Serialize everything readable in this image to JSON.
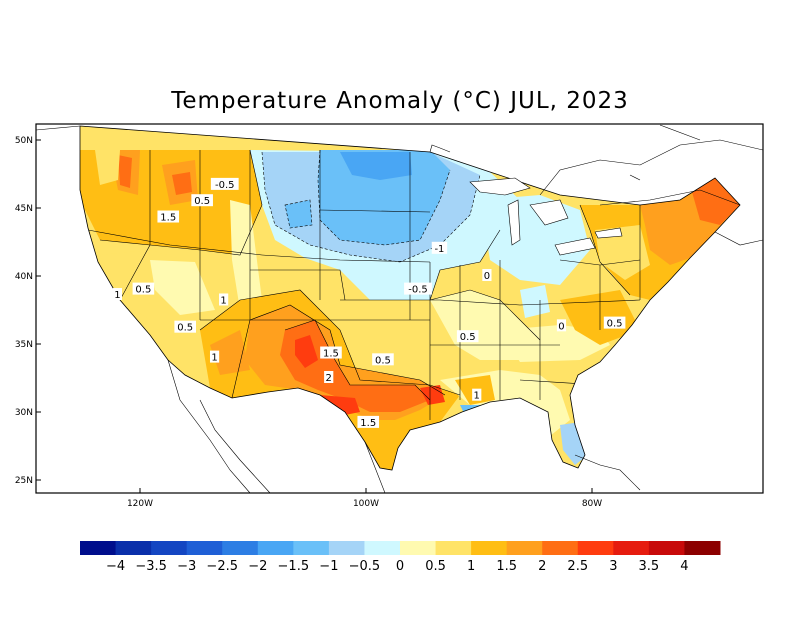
{
  "title": "Temperature Anomaly (°C) JUL, 2023",
  "axes": {
    "lat_ticks": [
      {
        "label": "50N",
        "lat": 50
      },
      {
        "label": "45N",
        "lat": 45
      },
      {
        "label": "40N",
        "lat": 40
      },
      {
        "label": "35N",
        "lat": 35
      },
      {
        "label": "30N",
        "lat": 30
      },
      {
        "label": "25N",
        "lat": 25
      }
    ],
    "lon_ticks": [
      {
        "label": "120W",
        "lon": -120
      },
      {
        "label": "100W",
        "lon": -100
      },
      {
        "label": "80W",
        "lon": -80
      }
    ]
  },
  "colorbar": {
    "colors": [
      "#000e8c",
      "#0a2faa",
      "#1446c2",
      "#1f5fd6",
      "#2d7ee4",
      "#49a6f4",
      "#6ac0f8",
      "#a5d4f7",
      "#cff8ff",
      "#fffab0",
      "#ffe367",
      "#ffbe14",
      "#ffa01e",
      "#ff6e14",
      "#ff3c0f",
      "#e61c0f",
      "#c80a0a",
      "#8c0000"
    ],
    "labels": [
      "−4",
      "−3.5",
      "−3",
      "−2.5",
      "−2",
      "−1.5",
      "−1",
      "−0.5",
      "0",
      "0.5",
      "1",
      "1.5",
      "2",
      "2.5",
      "3",
      "3.5",
      "4"
    ]
  },
  "contour_labels": [
    {
      "text": "-0.5",
      "lon": -112.5,
      "lat": 46.7
    },
    {
      "text": "0.5",
      "lon": -114.5,
      "lat": 45.5
    },
    {
      "text": "1.5",
      "lon": -117.5,
      "lat": 44.3
    },
    {
      "text": "-1",
      "lon": -93.5,
      "lat": 42.0
    },
    {
      "text": "-0.5",
      "lon": -95.4,
      "lat": 39.0
    },
    {
      "text": "0",
      "lon": -89.3,
      "lat": 40.0
    },
    {
      "text": "1",
      "lon": -122.0,
      "lat": 38.6
    },
    {
      "text": "0.5",
      "lon": -119.7,
      "lat": 39.0
    },
    {
      "text": "1",
      "lon": -112.6,
      "lat": 38.2
    },
    {
      "text": "0.5",
      "lon": -116.0,
      "lat": 36.2
    },
    {
      "text": "1",
      "lon": -113.4,
      "lat": 34.0
    },
    {
      "text": "1.5",
      "lon": -103.1,
      "lat": 34.3
    },
    {
      "text": "0.5",
      "lon": -98.5,
      "lat": 33.8
    },
    {
      "text": "0.5",
      "lon": -91.0,
      "lat": 35.5
    },
    {
      "text": "0",
      "lon": -82.7,
      "lat": 36.3
    },
    {
      "text": "0.5",
      "lon": -78.0,
      "lat": 36.5
    },
    {
      "text": "2",
      "lon": -103.3,
      "lat": 32.5
    },
    {
      "text": "1",
      "lon": -90.2,
      "lat": 31.2
    },
    {
      "text": "1.5",
      "lon": -99.8,
      "lat": 29.2
    }
  ]
}
